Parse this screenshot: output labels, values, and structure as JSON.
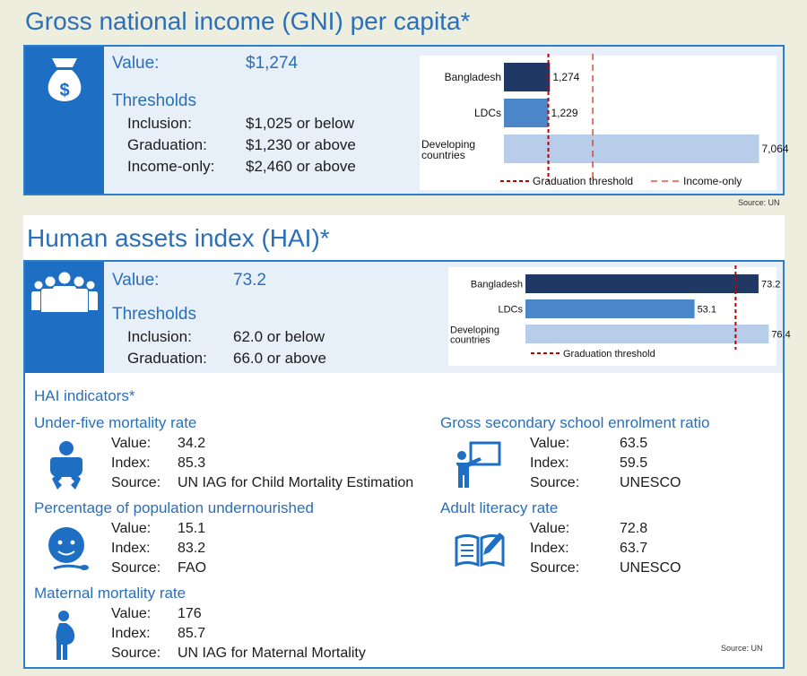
{
  "gni": {
    "title": "Gross national income (GNI) per capita*",
    "value_label": "Value:",
    "value": "$1,274",
    "thresholds_label": "Thresholds",
    "thresholds": [
      {
        "label": "Inclusion:",
        "value": "$1,025 or below"
      },
      {
        "label": "Graduation:",
        "value": "$1,230 or above"
      },
      {
        "label": "Income-only:",
        "value": "$2,460 or above"
      }
    ],
    "source": "Source: UN",
    "icon": "money-bag-icon"
  },
  "hai": {
    "title": "Human assets index (HAI)*",
    "value_label": "Value:",
    "value": "73.2",
    "thresholds_label": "Thresholds",
    "thresholds": [
      {
        "label": "Inclusion:",
        "value": "62.0 or below"
      },
      {
        "label": "Graduation:",
        "value": "66.0 or above"
      }
    ],
    "icon": "people-group-icon"
  },
  "indicators": {
    "heading": "HAI indicators*",
    "source": "Source: UN",
    "items": [
      {
        "title": "Under-five mortality rate",
        "icon": "baby-icon",
        "rows": [
          {
            "k": "Value:",
            "v": "34.2"
          },
          {
            "k": "Index:",
            "v": "85.3"
          },
          {
            "k": "Source:",
            "v": "UN IAG for Child Mortality Estimation"
          }
        ]
      },
      {
        "title": "Percentage of population undernourished",
        "icon": "child-face-icon",
        "rows": [
          {
            "k": "Value:",
            "v": "15.1"
          },
          {
            "k": "Index:",
            "v": "83.2"
          },
          {
            "k": "Source:",
            "v": "FAO"
          }
        ]
      },
      {
        "title": "Maternal mortality rate",
        "icon": "pregnant-woman-icon",
        "rows": [
          {
            "k": "Value:",
            "v": "176"
          },
          {
            "k": "Index:",
            "v": "85.7"
          },
          {
            "k": "Source:",
            "v": "UN IAG for Maternal Mortality"
          }
        ]
      },
      {
        "title": "Gross secondary school enrolment ratio",
        "icon": "teacher-board-icon",
        "rows": [
          {
            "k": "Value:",
            "v": "63.5"
          },
          {
            "k": "Index:",
            "v": "59.5"
          },
          {
            "k": "Source:",
            "v": "UNESCO"
          }
        ]
      },
      {
        "title": "Adult literacy rate",
        "icon": "open-book-icon",
        "rows": [
          {
            "k": "Value:",
            "v": "72.8"
          },
          {
            "k": "Index:",
            "v": "63.7"
          },
          {
            "k": "Source:",
            "v": "UNESCO"
          }
        ]
      }
    ]
  },
  "colors": {
    "accent": "#2a6fb8",
    "bangladesh": "#1f3864",
    "ldcs": "#4a86c8",
    "developing": "#b7cde9",
    "threshold": "#c00000"
  },
  "chart_data": [
    {
      "type": "bar",
      "orientation": "horizontal",
      "categories": [
        "Bangladesh",
        "LDCs",
        "Developing countries"
      ],
      "values": [
        1274,
        1229,
        7064
      ],
      "value_labels": [
        "1,274",
        "1,229",
        "7,064"
      ],
      "xlim": [
        0,
        7200
      ],
      "reference_lines": [
        {
          "name": "Graduation threshold",
          "value": 1230,
          "style": "dashed-dark-red"
        },
        {
          "name": "Income-only",
          "value": 2460,
          "style": "dashed-red"
        }
      ],
      "legend": [
        "Graduation threshold",
        "Income-only"
      ],
      "legend_position": "bottom"
    },
    {
      "type": "bar",
      "orientation": "horizontal",
      "categories": [
        "Bangladesh",
        "LDCs",
        "Developing countries"
      ],
      "values": [
        73.2,
        53.1,
        76.4
      ],
      "value_labels": [
        "73.2",
        "53.1",
        "76.4"
      ],
      "xlim": [
        0,
        78
      ],
      "reference_lines": [
        {
          "name": "Graduation threshold",
          "value": 66,
          "style": "dashed-dark-red"
        }
      ],
      "legend": [
        "Graduation threshold"
      ],
      "legend_position": "bottom"
    }
  ]
}
